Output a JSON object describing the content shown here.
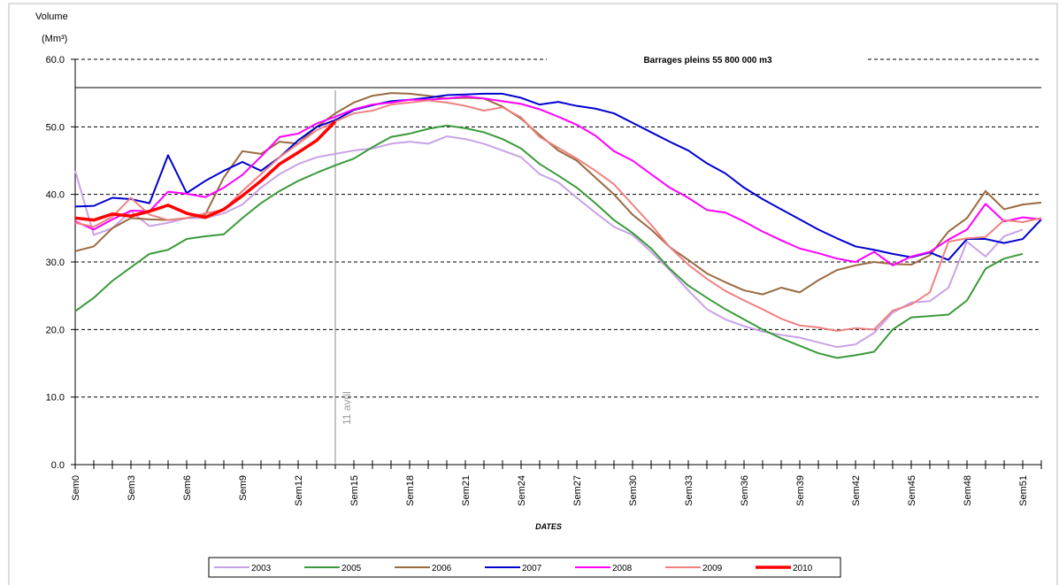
{
  "chart_data": {
    "type": "line",
    "y_axis_label": "Volume",
    "y_axis_unit": "(Mm³)",
    "x_axis_label": "DATES",
    "categories": [
      "Sem0",
      null,
      null,
      "Sem3",
      null,
      null,
      "Sem6",
      null,
      null,
      "Sem9",
      null,
      null,
      "Sem12",
      null,
      null,
      "Sem15",
      null,
      null,
      "Sem18",
      null,
      null,
      "Sem21",
      null,
      null,
      "Sem24",
      null,
      null,
      "Sem27",
      null,
      null,
      "Sem30",
      null,
      null,
      "Sem33",
      null,
      null,
      "Sem36",
      null,
      null,
      "Sem39",
      null,
      null,
      "Sem42",
      null,
      null,
      "Sem45",
      null,
      null,
      "Sem48",
      null,
      null,
      "Sem51",
      null
    ],
    "ylim": [
      0,
      60
    ],
    "yticks": [
      {
        "value": 0,
        "label": "0.0"
      },
      {
        "value": 10,
        "label": "10.0"
      },
      {
        "value": 20,
        "label": "20.0"
      },
      {
        "value": 30,
        "label": "30.0"
      },
      {
        "value": 40,
        "label": "40.0"
      },
      {
        "value": 50,
        "label": "50.0"
      },
      {
        "value": 60,
        "label": "60.0"
      }
    ],
    "grid": true,
    "reference_line": {
      "text": "Barrages pleins 55 800 000 m3",
      "y": 55.8
    },
    "vertical_marker": {
      "text": "11 avril",
      "x": 14
    },
    "series": [
      {
        "name": "2003",
        "color": "#c8a2e6",
        "width": 2,
        "values": [
          43.5,
          34,
          35,
          37.5,
          35.3,
          35.8,
          36.5,
          36.5,
          37.2,
          38.5,
          41,
          43,
          44.5,
          45.5,
          46,
          46.5,
          46.8,
          47.5,
          47.8,
          47.5,
          48.6,
          48.2,
          47.5,
          46.5,
          45.5,
          43,
          41.8,
          39.5,
          37.3,
          35.2,
          34,
          31.5,
          28.8,
          25.8,
          23,
          21.5,
          20.5,
          19.7,
          19.2,
          18.8,
          18.1,
          17.4,
          17.8,
          19.5,
          22.5,
          24,
          24.2,
          26.2,
          33,
          30.8,
          33.8,
          34.8,
          null
        ]
      },
      {
        "name": "2005",
        "color": "#3a9a3a",
        "width": 2,
        "values": [
          22.7,
          24.7,
          27.2,
          29.2,
          31.2,
          31.8,
          33.4,
          33.8,
          34.1,
          36.5,
          38.7,
          40.5,
          42,
          43.2,
          44.3,
          45.3,
          47,
          48.5,
          49,
          49.7,
          50.2,
          49.8,
          49.2,
          48.2,
          46.8,
          44.5,
          42.8,
          41,
          38.7,
          36.2,
          34.3,
          32,
          29,
          26.5,
          24.7,
          23,
          21.5,
          20,
          18.7,
          17.6,
          16.5,
          15.8,
          16.2,
          16.7,
          20,
          21.8,
          22,
          22.2,
          24.3,
          29,
          30.5,
          31.2,
          null
        ]
      },
      {
        "name": "2006",
        "color": "#9a6a40",
        "width": 2,
        "values": [
          31.6,
          32.3,
          35,
          36.5,
          36.3,
          36.2,
          36.5,
          37,
          42.5,
          46.4,
          46,
          47.8,
          47.5,
          50,
          52,
          53.6,
          54.6,
          55,
          54.9,
          54.6,
          54.2,
          54.3,
          54.2,
          53,
          51.2,
          48.8,
          46.5,
          45,
          42.5,
          40,
          37,
          34.8,
          32.2,
          30.3,
          28.3,
          27,
          25.8,
          25.2,
          26.2,
          25.5,
          27.3,
          28.8,
          29.5,
          30,
          29.7,
          29.6,
          31,
          34.5,
          36.5,
          40.5,
          37.8,
          38.5,
          38.8
        ]
      },
      {
        "name": "2007",
        "color": "#0000d0",
        "width": 2,
        "values": [
          38.2,
          38.3,
          39.5,
          39.3,
          38.7,
          45.8,
          40.2,
          42,
          43.5,
          44.8,
          43.5,
          45.5,
          48,
          50,
          51,
          52.5,
          53.2,
          53.8,
          54,
          54.3,
          54.7,
          54.8,
          54.9,
          54.9,
          54.3,
          53.3,
          53.7,
          53.1,
          52.7,
          52,
          50.6,
          49.2,
          47.8,
          46.5,
          44.6,
          43.1,
          41,
          39.3,
          37.8,
          36.3,
          34.8,
          33.5,
          32.3,
          31.8,
          31.2,
          30.7,
          31.4,
          30.3,
          33.4,
          33.4,
          32.8,
          33.4,
          36.3
        ]
      },
      {
        "name": "2008",
        "color": "#ff00ff",
        "width": 2,
        "values": [
          36,
          34.8,
          36.3,
          37.6,
          37.5,
          40.4,
          40.1,
          39.6,
          41,
          42.9,
          45.6,
          48.5,
          49,
          50.5,
          51.5,
          52.6,
          53.3,
          53.6,
          54,
          54,
          54.2,
          54.5,
          54.2,
          53.8,
          53.4,
          52.6,
          51.5,
          50.3,
          48.7,
          46.4,
          45,
          43,
          41,
          39.5,
          37.7,
          37.3,
          36,
          34.5,
          33.2,
          32,
          31.3,
          30.5,
          30,
          31.5,
          29.5,
          30.8,
          31.5,
          33.3,
          34.8,
          38.6,
          36,
          36.6,
          36.3
        ]
      },
      {
        "name": "2009",
        "color": "#f08080",
        "width": 2,
        "values": [
          35.8,
          35.2,
          36.7,
          39.5,
          37,
          36.2,
          36.5,
          37.2,
          37.7,
          40.5,
          43,
          45.5,
          47.5,
          49.5,
          50.8,
          52,
          52.4,
          53.3,
          53.6,
          53.9,
          53.6,
          53.1,
          52.4,
          52.9,
          51.4,
          48.5,
          46.9,
          45.3,
          43.5,
          41.5,
          38.5,
          35.5,
          32.2,
          29.6,
          27.5,
          25.7,
          24.3,
          23,
          21.6,
          20.6,
          20.3,
          19.8,
          20.2,
          20,
          22.8,
          23.7,
          25.5,
          33,
          33.5,
          33.7,
          36.2,
          35.9,
          36.5
        ]
      },
      {
        "name": "2010",
        "color": "#ff0000",
        "width": 3.5,
        "values": [
          36.5,
          36.2,
          37.1,
          36.8,
          37.5,
          38.4,
          37.2,
          36.6,
          37.8,
          39.8,
          42,
          44.5,
          46.2,
          48,
          50.8,
          null,
          null,
          null,
          null,
          null,
          null,
          null,
          null,
          null,
          null,
          null,
          null,
          null,
          null,
          null,
          null,
          null,
          null,
          null,
          null,
          null,
          null,
          null,
          null,
          null,
          null,
          null,
          null,
          null,
          null,
          null,
          null,
          null,
          null,
          null,
          null,
          null,
          null
        ]
      }
    ]
  }
}
